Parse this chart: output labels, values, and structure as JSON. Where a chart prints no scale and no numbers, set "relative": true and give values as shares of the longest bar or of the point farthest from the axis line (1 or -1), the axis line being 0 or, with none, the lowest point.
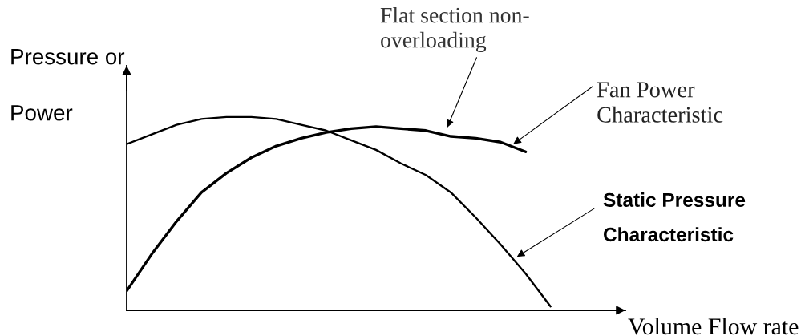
{
  "chart_data": {
    "type": "line",
    "relative": true,
    "xlabel": "Volume Flow rate",
    "ylabel": "Pressure or\nPower",
    "annotations": [
      "Flat section non-\noverloading"
    ],
    "categories": [
      null,
      null,
      null,
      null,
      null,
      null,
      null,
      null,
      null,
      null,
      null,
      null,
      null,
      null,
      null,
      null,
      null,
      null
    ],
    "series": [
      {
        "name": "Fan Power\nCharacteristic",
        "color": "#000000",
        "values": [
          0.1,
          0.29,
          0.46,
          0.61,
          0.71,
          0.79,
          0.85,
          0.89,
          0.92,
          0.94,
          0.95,
          0.94,
          0.93,
          0.9,
          0.89,
          0.87,
          0.82,
          null
        ]
      },
      {
        "name": "Static Pressure\nCharacteristic",
        "color": "#000000",
        "values": [
          0.86,
          0.91,
          0.96,
          0.99,
          1.0,
          1.0,
          0.99,
          0.96,
          0.93,
          0.88,
          0.83,
          0.76,
          0.7,
          0.61,
          0.48,
          0.34,
          0.19,
          0.02
        ]
      }
    ]
  }
}
